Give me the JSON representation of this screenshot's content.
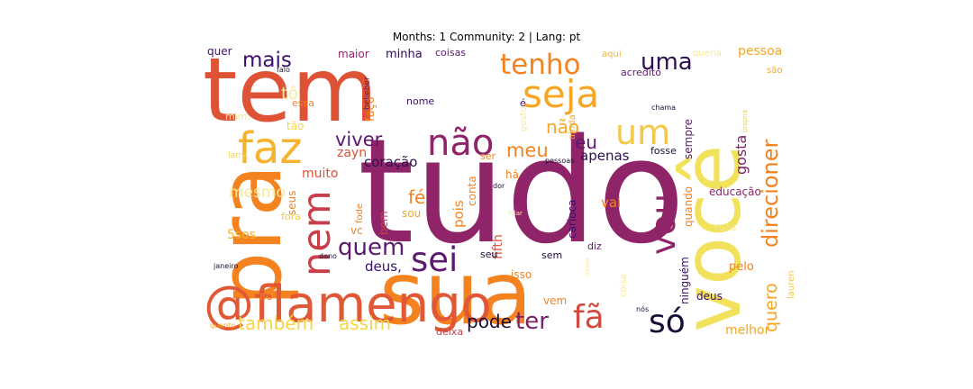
{
  "chart_data": {
    "type": "wordcloud",
    "title": "Months: 1 Community: 2 | Lang: pt",
    "palette": "inferno",
    "words": [
      {
        "text": "tudo",
        "weight": 1.0,
        "color": "#8f2469"
      },
      {
        "text": "tem",
        "weight": 0.82,
        "color": "#de5236"
      },
      {
        "text": "pra",
        "weight": 0.8,
        "color": "#f4821f"
      },
      {
        "text": "sua",
        "weight": 0.78,
        "color": "#f4821f"
      },
      {
        "text": "você",
        "weight": 0.76,
        "color": "#f2e15a"
      },
      {
        "text": "@flamengo",
        "weight": 0.52,
        "color": "#e05836"
      },
      {
        "text": "não",
        "weight": 0.42,
        "color": "#8f2469"
      },
      {
        "text": "faz",
        "weight": 0.4,
        "color": "#f5b32f"
      },
      {
        "text": "nem",
        "weight": 0.38,
        "color": "#c83f4b"
      },
      {
        "text": "seja",
        "weight": 0.37,
        "color": "#f5a623"
      },
      {
        "text": "um",
        "weight": 0.36,
        "color": "#f5c847"
      },
      {
        "text": "sei",
        "weight": 0.34,
        "color": "#5c1a6e"
      },
      {
        "text": "vou",
        "weight": 0.33,
        "color": "#8f2469"
      },
      {
        "text": "só",
        "weight": 0.31,
        "color": "#1b0e35"
      },
      {
        "text": "fã",
        "weight": 0.3,
        "color": "#d34a40"
      },
      {
        "text": "tenho",
        "weight": 0.26,
        "color": "#f4821f"
      },
      {
        "text": "ter",
        "weight": 0.24,
        "color": "#7b2168"
      },
      {
        "text": "quem",
        "weight": 0.24,
        "color": "#5c1a6e"
      },
      {
        "text": "direcioner",
        "weight": 0.22,
        "color": "#f4821f"
      },
      {
        "text": "uma",
        "weight": 0.22,
        "color": "#2e0f4f"
      },
      {
        "text": "mais",
        "weight": 0.21,
        "color": "#3b0f6a"
      },
      {
        "text": "viver",
        "weight": 0.2,
        "color": "#5c1a6e"
      },
      {
        "text": "meu",
        "weight": 0.2,
        "color": "#f4821f"
      },
      {
        "text": "também",
        "weight": 0.19,
        "color": "#f5d547"
      },
      {
        "text": "assim",
        "weight": 0.19,
        "color": "#f5d547"
      },
      {
        "text": "eu",
        "weight": 0.18,
        "color": "#5c1a6e"
      },
      {
        "text": "pode",
        "weight": 0.18,
        "color": "#1b0e35"
      },
      {
        "text": "fé",
        "weight": 0.17,
        "color": "#f4821f"
      },
      {
        "text": "não",
        "weight": 0.17,
        "color": "#f5a623"
      },
      {
        "text": "quero",
        "weight": 0.15,
        "color": "#f5a623"
      },
      {
        "text": "tô",
        "weight": 0.15,
        "color": "#f5e89a"
      },
      {
        "text": "mesmo",
        "weight": 0.14,
        "color": "#f5e89a"
      },
      {
        "text": "gosta",
        "weight": 0.13,
        "color": "#7b2168"
      },
      {
        "text": "apenas",
        "weight": 0.12,
        "color": "#2e0f4f"
      },
      {
        "text": "coração",
        "weight": 0.12,
        "color": "#2e0f4f"
      },
      {
        "text": "vai",
        "weight": 0.12,
        "color": "#f4821f"
      },
      {
        "text": "pois",
        "weight": 0.12,
        "color": "#f4821f"
      },
      {
        "text": "minha",
        "weight": 0.11,
        "color": "#2e0f4f"
      },
      {
        "text": "deus,",
        "weight": 0.11,
        "color": "#3b0f6a"
      },
      {
        "text": "muito",
        "weight": 0.11,
        "color": "#de5236"
      },
      {
        "text": "5sos",
        "weight": 0.11,
        "color": "#f5b32f"
      },
      {
        "text": "fifth",
        "weight": 0.11,
        "color": "#de5236"
      },
      {
        "text": "pessoa",
        "weight": 0.11,
        "color": "#f5a623"
      },
      {
        "text": "melhor",
        "weight": 0.11,
        "color": "#f5a623"
      },
      {
        "text": "sempre",
        "weight": 0.1,
        "color": "#5c1a6e"
      },
      {
        "text": "conta",
        "weight": 0.1,
        "color": "#f4821f"
      },
      {
        "text": "quando",
        "weight": 0.1,
        "color": "#f4821f"
      },
      {
        "text": "ninguém",
        "weight": 0.1,
        "color": "#3b0f6a"
      },
      {
        "text": "zayn",
        "weight": 0.1,
        "color": "#de5236"
      },
      {
        "text": "faço",
        "weight": 0.1,
        "color": "#f4821f"
      },
      {
        "text": "seus",
        "weight": 0.1,
        "color": "#f4821f"
      },
      {
        "text": "pelo",
        "weight": 0.1,
        "color": "#f4821f"
      },
      {
        "text": "vc",
        "weight": 0.09,
        "color": "#f4821f"
      },
      {
        "text": "maior",
        "weight": 0.09,
        "color": "#8f2469"
      },
      {
        "text": "quer",
        "weight": 0.09,
        "color": "#3b0f6a"
      },
      {
        "text": "bem",
        "weight": 0.09,
        "color": "#c83f4b"
      },
      {
        "text": "sou",
        "weight": 0.09,
        "color": "#f5a623"
      },
      {
        "text": "deus",
        "weight": 0.09,
        "color": "#3b0f6a"
      },
      {
        "text": "tão",
        "weight": 0.09,
        "color": "#f5d547"
      },
      {
        "text": "carioca",
        "weight": 0.09,
        "color": "#3b0f6a"
      },
      {
        "text": "educação",
        "weight": 0.09,
        "color": "#8f2469"
      },
      {
        "text": "há",
        "weight": 0.09,
        "color": "#f4821f"
      },
      {
        "text": "coisas",
        "weight": 0.08,
        "color": "#5c1a6e"
      },
      {
        "text": "acredito",
        "weight": 0.08,
        "color": "#5c1a6e"
      },
      {
        "text": "é",
        "weight": 0.08,
        "color": "#3b0f6a"
      },
      {
        "text": "ao",
        "weight": 0.08,
        "color": "#f4821f"
      },
      {
        "text": "vem",
        "weight": 0.08,
        "color": "#f4821f"
      },
      {
        "text": "seu",
        "weight": 0.08,
        "color": "#1b0e35"
      },
      {
        "text": "sem",
        "weight": 0.08,
        "color": "#1b0e35"
      },
      {
        "text": "fosse",
        "weight": 0.08,
        "color": "#1b0e35"
      },
      {
        "text": "diz",
        "weight": 0.08,
        "color": "#5c1a6e"
      },
      {
        "text": "isso",
        "weight": 0.08,
        "color": "#f4821f"
      },
      {
        "text": "nome",
        "weight": 0.08,
        "color": "#3b0f6a"
      },
      {
        "text": "essa",
        "weight": 0.08,
        "color": "#f4821f"
      },
      {
        "text": "mim,",
        "weight": 0.08,
        "color": "#f5e89a"
      },
      {
        "text": "ser",
        "weight": 0.08,
        "color": "#f4821f"
      },
      {
        "text": "fora",
        "weight": 0.08,
        "color": "#f5c847"
      },
      {
        "text": "suas",
        "weight": 0.08,
        "color": "#f5e89a"
      },
      {
        "text": "aqui",
        "weight": 0.07,
        "color": "#f5b32f"
      },
      {
        "text": "queria",
        "weight": 0.07,
        "color": "#f5e89a"
      },
      {
        "text": "são",
        "weight": 0.07,
        "color": "#f5a623"
      },
      {
        "text": "gosto",
        "weight": 0.07,
        "color": "#f5e89a"
      },
      {
        "text": "ainda",
        "weight": 0.07,
        "color": "#f5a623"
      },
      {
        "text": "fode",
        "weight": 0.07,
        "color": "#f4821f"
      },
      {
        "text": "deixa",
        "weight": 0.07,
        "color": "#c83f4b"
      },
      {
        "text": "coisa",
        "weight": 0.07,
        "color": "#f5e89a"
      },
      {
        "text": "lauren",
        "weight": 0.07,
        "color": "#f5c847"
      },
      {
        "text": "larry",
        "weight": 0.06,
        "color": "#f5d547"
      },
      {
        "text": "belieber",
        "weight": 0.06,
        "color": "#5c1a6e"
      },
      {
        "text": "falo",
        "weight": 0.06,
        "color": "#1b0e35"
      },
      {
        "text": "janeiro",
        "weight": 0.06,
        "color": "#1b0e35"
      },
      {
        "text": "chama",
        "weight": 0.06,
        "color": "#1b0e35"
      },
      {
        "text": "pessoas",
        "weight": 0.06,
        "color": "#1b0e35"
      },
      {
        "text": "dor",
        "weight": 0.06,
        "color": "#1b0e35"
      },
      {
        "text": "dono",
        "weight": 0.06,
        "color": "#1b0e35"
      },
      {
        "text": "nós",
        "weight": 0.06,
        "color": "#1b0e35"
      },
      {
        "text": "quanto",
        "weight": 0.06,
        "color": "#f5a623"
      },
      {
        "text": "própria",
        "weight": 0.05,
        "color": "#f5c847"
      },
      {
        "text": "falar",
        "weight": 0.05,
        "color": "#f5e89a"
      },
      {
        "text": "nossa",
        "weight": 0.05,
        "color": "#f5e89a"
      }
    ]
  }
}
